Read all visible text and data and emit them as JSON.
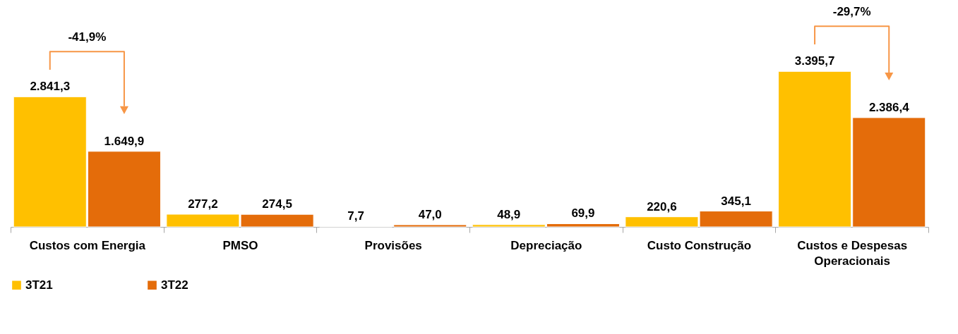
{
  "chart_data": {
    "type": "bar",
    "categories": [
      "Custos com Energia",
      "PMSO",
      "Provisões",
      "Depreciação",
      "Custo Construção",
      "Custos e Despesas Operacionais"
    ],
    "series": [
      {
        "name": "3T21",
        "color": "#ffc000",
        "values": [
          2841.3,
          277.2,
          7.7,
          48.9,
          220.6,
          3395.7
        ],
        "value_labels": [
          "2.841,3",
          "277,2",
          "7,7",
          "48,9",
          "220,6",
          "3.395,7"
        ]
      },
      {
        "name": "3T22",
        "color": "#e46c0a",
        "values": [
          1649.9,
          274.5,
          47.0,
          69.9,
          345.1,
          2386.4
        ],
        "value_labels": [
          "1.649,9",
          "274,5",
          "47,0",
          "69,9",
          "345,1",
          "2.386,4"
        ]
      }
    ],
    "annotations": [
      "-41,9%",
      "-29,7%"
    ],
    "legend": "bottom"
  }
}
